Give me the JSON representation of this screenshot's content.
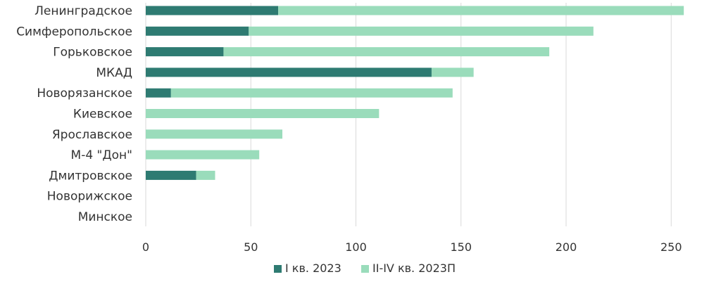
{
  "chart_data": {
    "type": "bar",
    "orientation": "horizontal",
    "stacked": true,
    "categories": [
      "Ленинградское",
      "Симферопольское",
      "Горьковское",
      "МКАД",
      "Новорязанское",
      "Киевское",
      "Ярославское",
      "М-4 \"Дон\"",
      "Дмитровское",
      "Новорижское",
      "Минское"
    ],
    "series": [
      {
        "name": "I кв. 2023",
        "color": "#2e7b72",
        "values": [
          63,
          49,
          37,
          136,
          12,
          0,
          0,
          0,
          24,
          0,
          0
        ]
      },
      {
        "name": "II-IV кв. 2023П",
        "color": "#9adcbb",
        "values": [
          193,
          164,
          155,
          20,
          134,
          111,
          65,
          54,
          9,
          0,
          0
        ]
      }
    ],
    "xticks": [
      "0",
      "50",
      "100",
      "150",
      "200",
      "250"
    ],
    "xlim": [
      0,
      260
    ],
    "grid": true,
    "legend": "bottom"
  }
}
